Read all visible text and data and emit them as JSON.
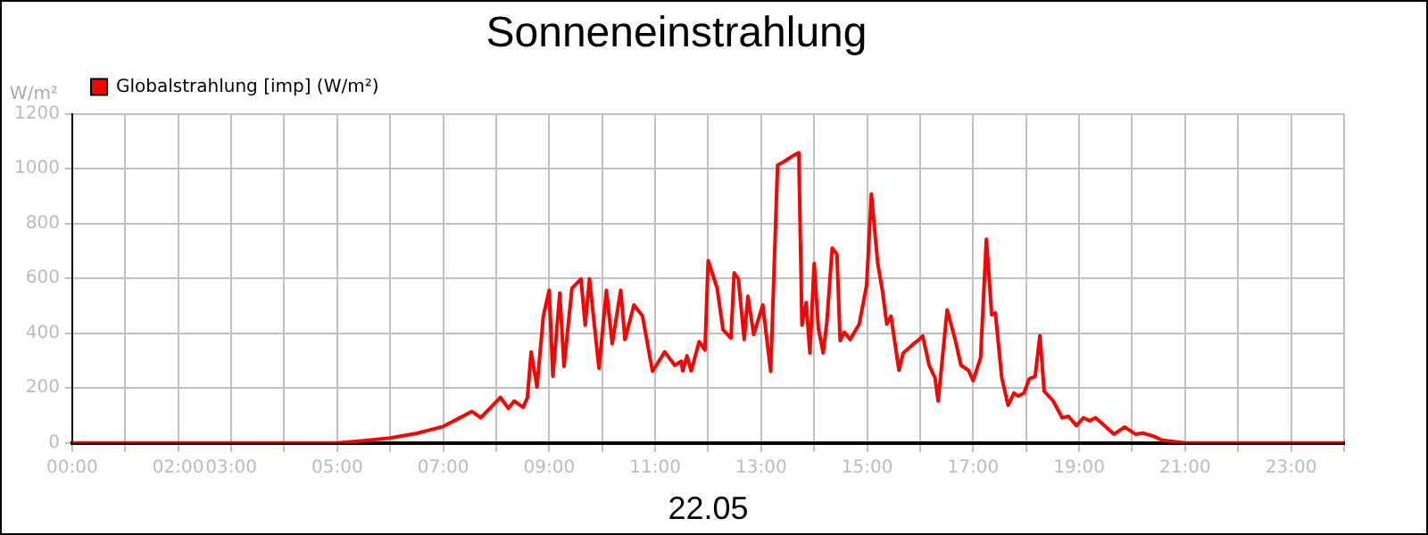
{
  "chart_data": {
    "type": "line",
    "title": "Sonneneinstrahlung",
    "xlabel": "22.05",
    "ylabel": "W/m²",
    "legend": "top left",
    "grid": true,
    "marker": "none",
    "line_style": "solid",
    "xlim": [
      0,
      24
    ],
    "xticks": [
      {
        "value": 0,
        "label": "00:00"
      },
      {
        "value": 1,
        "label": null
      },
      {
        "value": 2,
        "label": "02:00"
      },
      {
        "value": 3,
        "label": "03:00"
      },
      {
        "value": 4,
        "label": null
      },
      {
        "value": 5,
        "label": "05:00"
      },
      {
        "value": 6,
        "label": null
      },
      {
        "value": 7,
        "label": "07:00"
      },
      {
        "value": 8,
        "label": null
      },
      {
        "value": 9,
        "label": "09:00"
      },
      {
        "value": 10,
        "label": null
      },
      {
        "value": 11,
        "label": "11:00"
      },
      {
        "value": 12,
        "label": null
      },
      {
        "value": 13,
        "label": "13:00"
      },
      {
        "value": 14,
        "label": null
      },
      {
        "value": 15,
        "label": "15:00"
      },
      {
        "value": 16,
        "label": null
      },
      {
        "value": 17,
        "label": "17:00"
      },
      {
        "value": 18,
        "label": null
      },
      {
        "value": 19,
        "label": "19:00"
      },
      {
        "value": 20,
        "label": null
      },
      {
        "value": 21,
        "label": "21:00"
      },
      {
        "value": 22,
        "label": null
      },
      {
        "value": 23,
        "label": "23:00"
      },
      {
        "value": 24,
        "label": null
      }
    ],
    "ylim": [
      0,
      1200
    ],
    "yticks": [
      0,
      200,
      400,
      600,
      800,
      1000,
      1200
    ],
    "series": [
      {
        "name": "Globalstrahlung [imp] (W/m²)",
        "color": "#ff0000",
        "x": [
          0,
          5.0,
          5.5,
          6.0,
          6.5,
          7.0,
          7.25,
          7.54,
          7.71,
          7.89,
          8.08,
          8.23,
          8.34,
          8.51,
          8.59,
          8.66,
          8.77,
          8.89,
          9.0,
          9.07,
          9.2,
          9.28,
          9.43,
          9.6,
          9.68,
          9.76,
          9.94,
          10.08,
          10.19,
          10.35,
          10.43,
          10.6,
          10.76,
          10.95,
          11.18,
          11.37,
          11.49,
          11.52,
          11.6,
          11.68,
          11.83,
          11.94,
          12.0,
          12.17,
          12.28,
          12.43,
          12.49,
          12.57,
          12.68,
          12.75,
          12.86,
          13.03,
          13.18,
          13.31,
          13.46,
          13.6,
          13.71,
          13.77,
          13.85,
          13.92,
          14.0,
          14.08,
          14.17,
          14.24,
          14.34,
          14.43,
          14.49,
          14.57,
          14.68,
          14.85,
          14.99,
          15.08,
          15.2,
          15.29,
          15.37,
          15.45,
          15.6,
          15.68,
          15.88,
          15.98,
          16.05,
          16.17,
          16.28,
          16.34,
          16.51,
          16.66,
          16.77,
          16.91,
          17.0,
          17.14,
          17.25,
          17.35,
          17.42,
          17.54,
          17.66,
          17.77,
          17.85,
          17.96,
          18.06,
          18.17,
          18.26,
          18.34,
          18.51,
          18.68,
          18.8,
          18.95,
          19.08,
          19.2,
          19.31,
          19.48,
          19.66,
          19.86,
          20.06,
          20.2,
          20.4,
          20.57,
          21.0,
          24
        ],
        "values": [
          0,
          0,
          8,
          18,
          35,
          60,
          85,
          115,
          92,
          128,
          166,
          126,
          153,
          130,
          166,
          332,
          204,
          463,
          557,
          243,
          546,
          279,
          564,
          598,
          429,
          598,
          272,
          557,
          362,
          557,
          377,
          503,
          463,
          261,
          332,
          283,
          298,
          263,
          318,
          263,
          369,
          339,
          665,
          564,
          413,
          382,
          620,
          598,
          377,
          535,
          395,
          503,
          261,
          1013,
          1029,
          1047,
          1058,
          429,
          512,
          328,
          654,
          418,
          328,
          440,
          710,
          688,
          373,
          404,
          377,
          433,
          575,
          908,
          654,
          553,
          433,
          462,
          265,
          328,
          362,
          377,
          390,
          283,
          238,
          153,
          485,
          377,
          283,
          265,
          227,
          310,
          743,
          467,
          474,
          238,
          137,
          182,
          171,
          182,
          234,
          243,
          391,
          189,
          153,
          92,
          97,
          63,
          92,
          81,
          92,
          63,
          32,
          58,
          32,
          36,
          25,
          10,
          0,
          0
        ]
      }
    ]
  }
}
